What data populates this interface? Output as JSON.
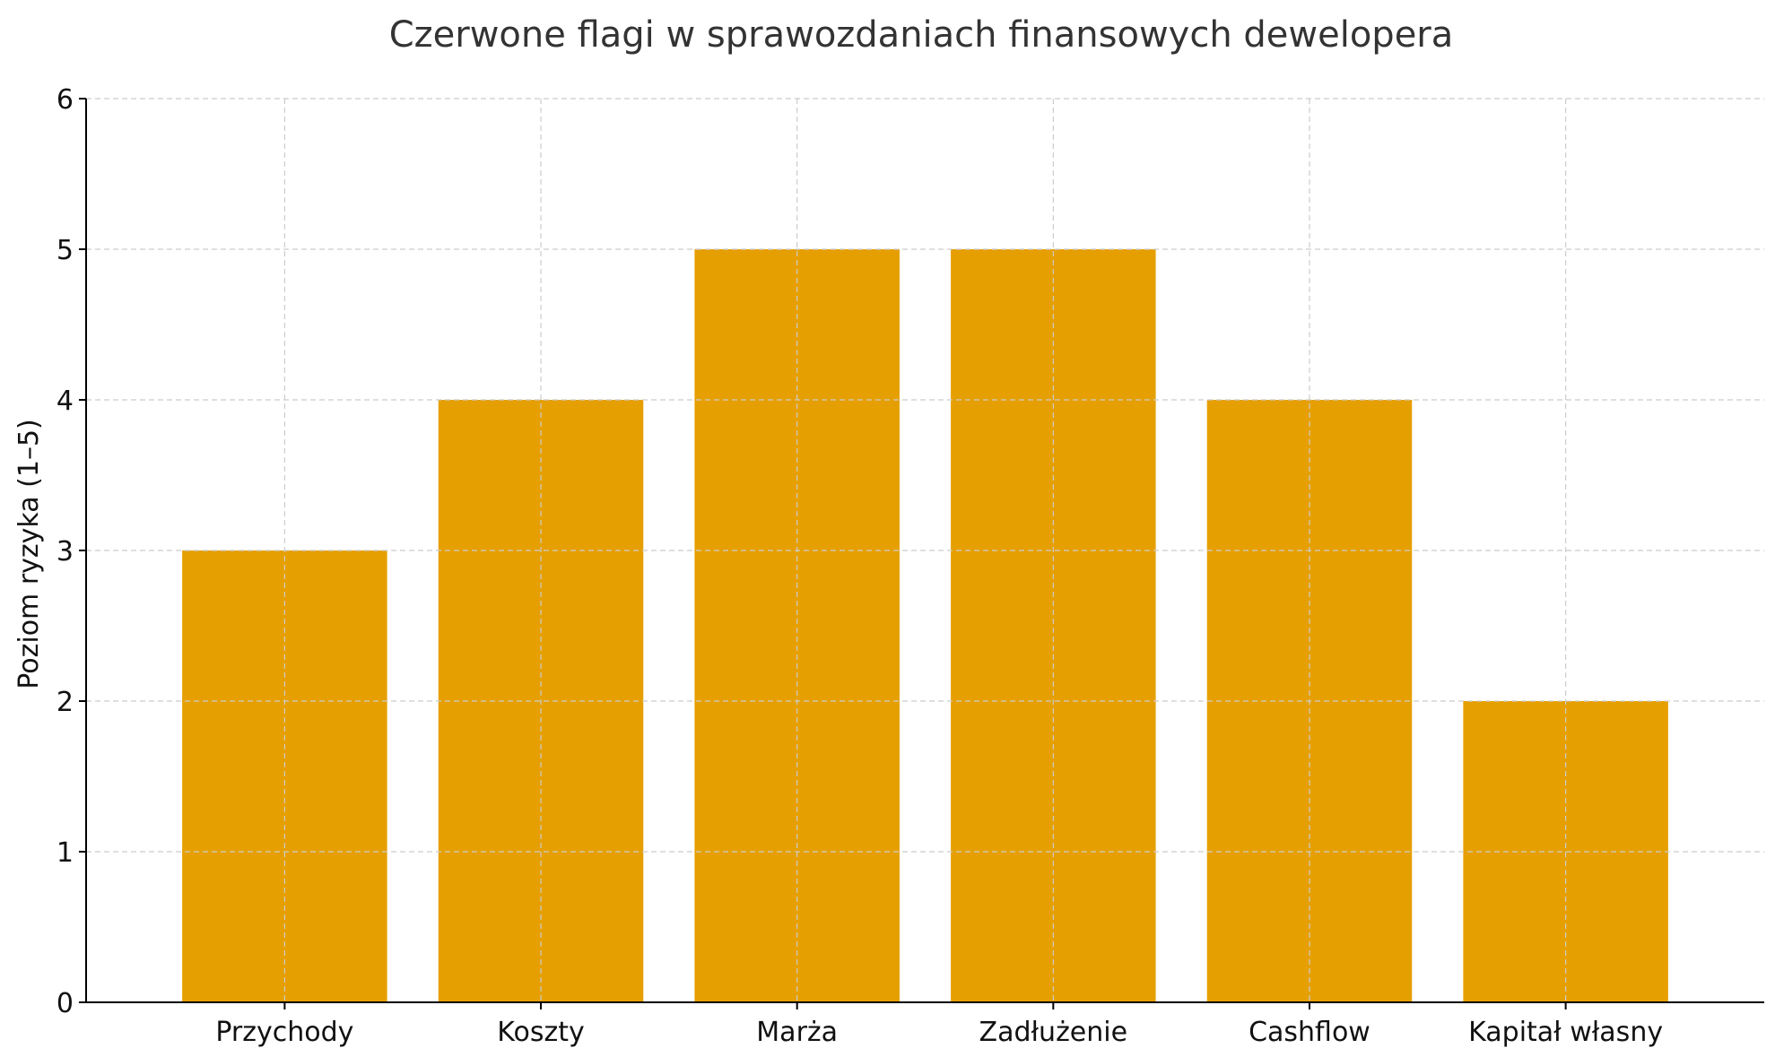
{
  "chart_data": {
    "type": "bar",
    "title": "Czerwone flagi w sprawozdaniach finansowych dewelopera",
    "xlabel": "",
    "ylabel": "Poziom ryzyka (1–5)",
    "categories": [
      "Przychody",
      "Koszty",
      "Marża",
      "Zadłużenie",
      "Cashflow",
      "Kapitał własny"
    ],
    "values": [
      3,
      4,
      5,
      5,
      4,
      2
    ],
    "ylim": [
      0,
      6
    ],
    "yticks": [
      0,
      1,
      2,
      3,
      4,
      5,
      6
    ],
    "grid": true,
    "bar_color": "#E69F00"
  }
}
